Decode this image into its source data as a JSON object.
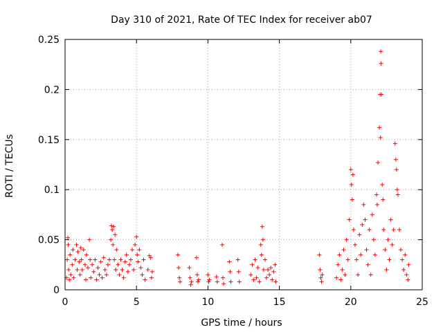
{
  "chart_data": {
    "type": "scatter",
    "title": "Day 310 of 2021, Rate Of TEC Index for receiver ab07",
    "xlabel": "GPS time / hours",
    "ylabel": "ROTI / TECUs",
    "xlim": [
      0,
      25
    ],
    "ylim": [
      0,
      0.25
    ],
    "xticks": [
      0,
      5,
      10,
      15,
      20,
      25
    ],
    "xtick_labels": [
      "0",
      "5",
      "10",
      "15",
      "20",
      "25"
    ],
    "yticks": [
      0,
      0.05,
      0.1,
      0.15,
      0.2,
      0.25
    ],
    "ytick_labels": [
      "0",
      "0.05",
      "0.1",
      "0.15",
      "0.2",
      "0.25"
    ],
    "grid": true,
    "marker": "+",
    "marker_color": "#ff0000",
    "series": [
      {
        "name": "ROTI",
        "points": [
          [
            0.1,
            0.012
          ],
          [
            0.15,
            0.03
          ],
          [
            0.2,
            0.052
          ],
          [
            0.22,
            0.045
          ],
          [
            0.25,
            0.02
          ],
          [
            0.3,
            0.01
          ],
          [
            0.35,
            0.035
          ],
          [
            0.4,
            0.015
          ],
          [
            0.5,
            0.025
          ],
          [
            0.55,
            0.04
          ],
          [
            0.6,
            0.012
          ],
          [
            0.7,
            0.03
          ],
          [
            0.8,
            0.045
          ],
          [
            0.85,
            0.02
          ],
          [
            0.9,
            0.038
          ],
          [
            1.0,
            0.028
          ],
          [
            1.05,
            0.015
          ],
          [
            1.1,
            0.042
          ],
          [
            1.15,
            0.03
          ],
          [
            1.2,
            0.02
          ],
          [
            1.3,
            0.04
          ],
          [
            1.4,
            0.025
          ],
          [
            1.45,
            0.01
          ],
          [
            1.5,
            0.035
          ],
          [
            1.6,
            0.022
          ],
          [
            1.7,
            0.05
          ],
          [
            1.75,
            0.03
          ],
          [
            1.8,
            0.012
          ],
          [
            1.9,
            0.025
          ],
          [
            2.0,
            0.018
          ],
          [
            2.1,
            0.03
          ],
          [
            2.2,
            0.01
          ],
          [
            2.3,
            0.022
          ],
          [
            2.4,
            0.015
          ],
          [
            2.5,
            0.028
          ],
          [
            2.6,
            0.012
          ],
          [
            2.7,
            0.032
          ],
          [
            2.8,
            0.02
          ],
          [
            2.9,
            0.015
          ],
          [
            3.0,
            0.025
          ],
          [
            3.1,
            0.03
          ],
          [
            3.2,
            0.05
          ],
          [
            3.25,
            0.064
          ],
          [
            3.3,
            0.06
          ],
          [
            3.35,
            0.045
          ],
          [
            3.4,
            0.063
          ],
          [
            3.45,
            0.03
          ],
          [
            3.5,
            0.055
          ],
          [
            3.55,
            0.02
          ],
          [
            3.6,
            0.04
          ],
          [
            3.7,
            0.025
          ],
          [
            3.8,
            0.015
          ],
          [
            3.9,
            0.03
          ],
          [
            4.0,
            0.02
          ],
          [
            4.1,
            0.012
          ],
          [
            4.2,
            0.028
          ],
          [
            4.3,
            0.035
          ],
          [
            4.4,
            0.018
          ],
          [
            4.5,
            0.025
          ],
          [
            4.6,
            0.03
          ],
          [
            4.7,
            0.04
          ],
          [
            4.8,
            0.02
          ],
          [
            4.9,
            0.045
          ],
          [
            5.0,
            0.053
          ],
          [
            5.05,
            0.035
          ],
          [
            5.1,
            0.028
          ],
          [
            5.2,
            0.04
          ],
          [
            5.3,
            0.022
          ],
          [
            5.4,
            0.015
          ],
          [
            5.5,
            0.03
          ],
          [
            5.6,
            0.01
          ],
          [
            5.8,
            0.02
          ],
          [
            5.9,
            0.034
          ],
          [
            6.0,
            0.032
          ],
          [
            6.05,
            0.012
          ],
          [
            6.1,
            0.018
          ],
          [
            7.9,
            0.035
          ],
          [
            7.95,
            0.022
          ],
          [
            8.0,
            0.012
          ],
          [
            8.05,
            0.008
          ],
          [
            8.7,
            0.022
          ],
          [
            8.75,
            0.012
          ],
          [
            8.8,
            0.005
          ],
          [
            8.85,
            0.008
          ],
          [
            9.2,
            0.032
          ],
          [
            9.25,
            0.015
          ],
          [
            9.3,
            0.008
          ],
          [
            9.35,
            0.01
          ],
          [
            10.0,
            0.015
          ],
          [
            10.05,
            0.008
          ],
          [
            10.1,
            0.01
          ],
          [
            10.6,
            0.013
          ],
          [
            10.65,
            0.008
          ],
          [
            11.0,
            0.045
          ],
          [
            11.05,
            0.012
          ],
          [
            11.1,
            0.006
          ],
          [
            11.5,
            0.028
          ],
          [
            11.55,
            0.018
          ],
          [
            11.6,
            0.008
          ],
          [
            12.1,
            0.03
          ],
          [
            12.15,
            0.018
          ],
          [
            12.2,
            0.008
          ],
          [
            13.0,
            0.015
          ],
          [
            13.1,
            0.025
          ],
          [
            13.2,
            0.01
          ],
          [
            13.3,
            0.03
          ],
          [
            13.4,
            0.012
          ],
          [
            13.5,
            0.022
          ],
          [
            13.6,
            0.008
          ],
          [
            13.7,
            0.045
          ],
          [
            13.75,
            0.035
          ],
          [
            13.8,
            0.063
          ],
          [
            13.85,
            0.05
          ],
          [
            13.9,
            0.02
          ],
          [
            14.0,
            0.03
          ],
          [
            14.1,
            0.012
          ],
          [
            14.2,
            0.02
          ],
          [
            14.3,
            0.015
          ],
          [
            14.4,
            0.022
          ],
          [
            14.5,
            0.01
          ],
          [
            14.6,
            0.018
          ],
          [
            14.7,
            0.025
          ],
          [
            14.75,
            0.008
          ],
          [
            17.8,
            0.035
          ],
          [
            17.85,
            0.02
          ],
          [
            17.9,
            0.012
          ],
          [
            17.95,
            0.008
          ],
          [
            18.0,
            0.015
          ],
          [
            19.0,
            0.012
          ],
          [
            19.1,
            0.025
          ],
          [
            19.2,
            0.035
          ],
          [
            19.3,
            0.01
          ],
          [
            19.4,
            0.02
          ],
          [
            19.5,
            0.04
          ],
          [
            19.6,
            0.015
          ],
          [
            19.7,
            0.05
          ],
          [
            19.8,
            0.03
          ],
          [
            19.9,
            0.07
          ],
          [
            20.0,
            0.12
          ],
          [
            20.05,
            0.105
          ],
          [
            20.1,
            0.09
          ],
          [
            20.15,
            0.115
          ],
          [
            20.2,
            0.06
          ],
          [
            20.3,
            0.045
          ],
          [
            20.4,
            0.03
          ],
          [
            20.5,
            0.015
          ],
          [
            20.6,
            0.055
          ],
          [
            20.7,
            0.035
          ],
          [
            20.8,
            0.065
          ],
          [
            20.9,
            0.085
          ],
          [
            21.0,
            0.07
          ],
          [
            21.1,
            0.04
          ],
          [
            21.2,
            0.025
          ],
          [
            21.3,
            0.06
          ],
          [
            21.4,
            0.015
          ],
          [
            21.5,
            0.075
          ],
          [
            21.6,
            0.05
          ],
          [
            21.7,
            0.035
          ],
          [
            21.8,
            0.095
          ],
          [
            21.85,
            0.085
          ],
          [
            21.9,
            0.127
          ],
          [
            22.0,
            0.162
          ],
          [
            22.05,
            0.195
          ],
          [
            22.08,
            0.152
          ],
          [
            22.1,
            0.238
          ],
          [
            22.12,
            0.226
          ],
          [
            22.15,
            0.195
          ],
          [
            22.2,
            0.105
          ],
          [
            22.25,
            0.09
          ],
          [
            22.3,
            0.06
          ],
          [
            22.4,
            0.04
          ],
          [
            22.5,
            0.02
          ],
          [
            22.6,
            0.05
          ],
          [
            22.7,
            0.03
          ],
          [
            22.8,
            0.07
          ],
          [
            22.9,
            0.045
          ],
          [
            23.0,
            0.06
          ],
          [
            23.1,
            0.146
          ],
          [
            23.15,
            0.13
          ],
          [
            23.2,
            0.12
          ],
          [
            23.25,
            0.1
          ],
          [
            23.3,
            0.095
          ],
          [
            23.4,
            0.06
          ],
          [
            23.5,
            0.04
          ],
          [
            23.6,
            0.03
          ],
          [
            23.7,
            0.02
          ],
          [
            23.8,
            0.035
          ],
          [
            23.9,
            0.015
          ],
          [
            24.0,
            0.01
          ],
          [
            24.05,
            0.025
          ]
        ]
      }
    ]
  }
}
